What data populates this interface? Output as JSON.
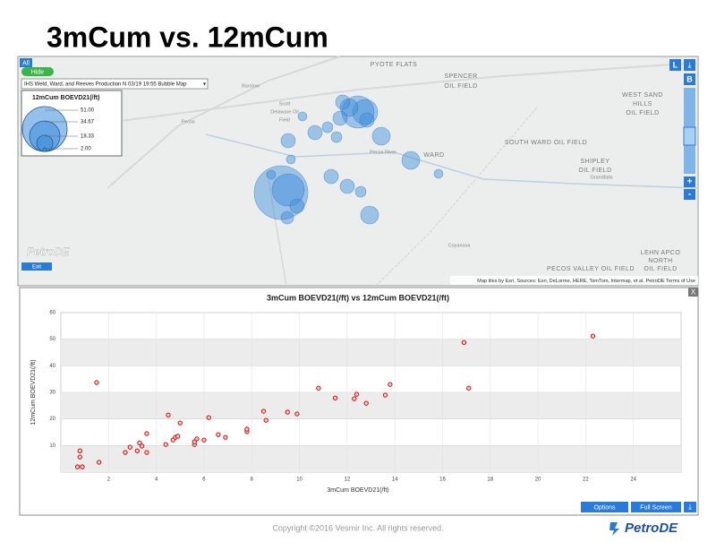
{
  "header": {
    "title": "3mCum vs. 12mCum"
  },
  "map": {
    "all": "All",
    "hide": "Hide",
    "layer": "IHS Weld, Ward, and Reeves Production N 03/19 19:55 Bubble Map",
    "legend": {
      "title": "12mCum BOEVD21(/ft)",
      "labels": [
        "51.00",
        "34.67",
        "18.33",
        "2.00"
      ]
    },
    "layer_buttons": [
      "L",
      "B"
    ],
    "zoom": [
      "+",
      "-"
    ],
    "exit": "Exit",
    "brand": "PetroDE",
    "labels": [
      "PYOTE FLATS",
      "SPENCER",
      "OIL FIELD",
      "WEST SAND",
      "HILLS",
      "OIL FIELD",
      "SOUTH WARD OIL FIELD",
      "SHIPLEY",
      "OIL FIELD",
      "WARD",
      "Barstow",
      "Scott",
      "Delaware Oil",
      "Field",
      "Pecos",
      "Grandfalls",
      "Coyanosa",
      "PECOS VALLEY OIL FIELD",
      "LEHN APCO",
      "NORTH",
      "OIL FIELD",
      "Pecos River"
    ],
    "attribution": "Map tiles by Esri, Sources: Esri, DeLorme, HERE, TomTom, Intermap, et al. PetroDE Terms of Use"
  },
  "chart_data": {
    "type": "scatter",
    "title": "3mCum BOEVD21(/ft) vs 12mCum BOEVD21(/ft)",
    "x_label": "3mCum BOEVD21(/ft)",
    "y_label": "12mCum BOEVD21(/ft)",
    "x": [
      0.7,
      0.8,
      0.8,
      0.9,
      1.5,
      1.6,
      2.7,
      2.9,
      3.2,
      3.3,
      3.4,
      3.6,
      3.6,
      4.5,
      4.4,
      4.7,
      4.8,
      5.0,
      4.9,
      5.6,
      5.6,
      5.7,
      6.0,
      6.2,
      6.6,
      6.9,
      7.8,
      7.8,
      8.5,
      8.6,
      9.5,
      9.9,
      10.8,
      11.5,
      12.3,
      12.4,
      12.8,
      13.6,
      13.8,
      16.9,
      17.1,
      22.3
    ],
    "values": [
      2.0,
      8.0,
      5.7,
      2.0,
      33.7,
      3.7,
      7.4,
      9.4,
      8.0,
      11.0,
      9.8,
      14.5,
      7.4,
      21.5,
      10.4,
      12.1,
      13.1,
      18.5,
      13.5,
      10.4,
      11.4,
      12.5,
      12.1,
      20.5,
      14.1,
      13.1,
      15.2,
      16.2,
      22.9,
      19.5,
      22.6,
      21.9,
      31.6,
      27.9,
      27.6,
      29.3,
      25.9,
      29.0,
      33.0,
      48.8,
      31.6,
      51.2
    ],
    "color": "#cc0000",
    "xlim": [
      0,
      26
    ],
    "ylim": [
      0,
      60
    ],
    "xticks": [
      2,
      4,
      6,
      8,
      10,
      12,
      14,
      16,
      18,
      20,
      22,
      24
    ],
    "yticks": [
      10,
      20,
      30,
      40,
      50,
      60
    ],
    "grid": true
  },
  "panel": {
    "close": "X",
    "buttons": [
      "Options",
      "Full Screen"
    ]
  },
  "footer": {
    "copyright": "Copyright ©2016 Vesmir Inc. All rights reserved.",
    "logo": "PetroDE"
  }
}
